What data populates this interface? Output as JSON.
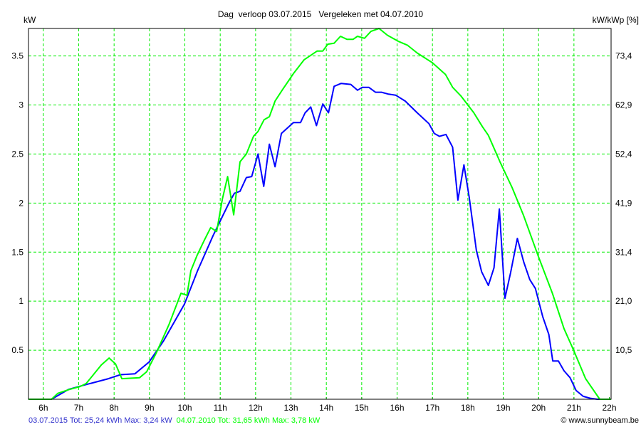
{
  "chart_data": {
    "type": "line",
    "title": "Dag  verloop 03.07.2015   Vergeleken met 04.07.2010",
    "ylabel": "kW",
    "ylabel_right": "kW/kWp [%]",
    "xlim": [
      5.58,
      22.05
    ],
    "ylim": [
      0,
      3.78
    ],
    "grid": true,
    "x_ticks": [
      6,
      7,
      8,
      9,
      10,
      11,
      12,
      13,
      14,
      15,
      16,
      17,
      18,
      19,
      20,
      21,
      22
    ],
    "x_tick_labels": [
      "6h",
      "7h",
      "8h",
      "9h",
      "10h",
      "11h",
      "12h",
      "13h",
      "14h",
      "15h",
      "16h",
      "17h",
      "18h",
      "19h",
      "20h",
      "21h",
      "22h"
    ],
    "y_ticks": [
      0.5,
      1,
      1.5,
      2,
      2.5,
      3,
      3.5
    ],
    "y_tick_labels": [
      "0.5",
      "1",
      "1.5",
      "2",
      "2.5",
      "3",
      "3.5"
    ],
    "y_right_tick_labels": [
      "10,5",
      "21,0",
      "31,4",
      "41,9",
      "52,4",
      "62,9",
      "73,4"
    ],
    "series": [
      {
        "name": "03.07.2015",
        "color": "#0000ff",
        "x": [
          5.58,
          6.23,
          6.71,
          7.11,
          7.84,
          8.18,
          8.59,
          8.99,
          9.39,
          9.99,
          10.36,
          10.8,
          11.26,
          11.4,
          11.56,
          11.74,
          11.89,
          12.07,
          12.23,
          12.39,
          12.55,
          12.73,
          13.07,
          13.27,
          13.4,
          13.56,
          13.72,
          13.9,
          14.06,
          14.22,
          14.42,
          14.69,
          14.88,
          15.02,
          15.2,
          15.39,
          15.56,
          15.76,
          15.96,
          16.23,
          16.57,
          16.9,
          17.05,
          17.2,
          17.38,
          17.57,
          17.72,
          17.89,
          18.04,
          18.24,
          18.39,
          18.58,
          18.74,
          18.89,
          19.05,
          19.21,
          19.4,
          19.58,
          19.75,
          19.91,
          20.12,
          20.29,
          20.4,
          20.56,
          20.72,
          20.89,
          21.06,
          21.26,
          21.46,
          21.66,
          22.05
        ],
        "y": [
          0,
          0,
          0.1,
          0.14,
          0.21,
          0.25,
          0.26,
          0.38,
          0.59,
          0.97,
          1.31,
          1.67,
          2.01,
          2.1,
          2.12,
          2.26,
          2.27,
          2.5,
          2.17,
          2.6,
          2.37,
          2.71,
          2.82,
          2.82,
          2.92,
          2.98,
          2.79,
          3.01,
          2.92,
          3.19,
          3.22,
          3.21,
          3.15,
          3.18,
          3.18,
          3.13,
          3.13,
          3.11,
          3.1,
          3.04,
          2.92,
          2.81,
          2.71,
          2.68,
          2.7,
          2.57,
          2.03,
          2.39,
          2.06,
          1.52,
          1.3,
          1.16,
          1.34,
          1.94,
          1.03,
          1.29,
          1.64,
          1.4,
          1.22,
          1.13,
          0.84,
          0.66,
          0.39,
          0.39,
          0.29,
          0.22,
          0.09,
          0.03,
          0.01,
          0,
          0
        ]
      },
      {
        "name": "04.07.2010",
        "color": "#00ff00",
        "x": [
          5.58,
          6.23,
          6.41,
          6.74,
          7.04,
          7.21,
          7.64,
          7.86,
          8.04,
          8.22,
          8.72,
          8.92,
          9.19,
          9.55,
          9.89,
          10.06,
          10.17,
          10.35,
          10.55,
          10.73,
          10.9,
          11.06,
          11.21,
          11.38,
          11.56,
          11.74,
          11.94,
          12.07,
          12.24,
          12.39,
          12.55,
          12.75,
          13.07,
          13.37,
          13.74,
          13.9,
          14.04,
          14.22,
          14.4,
          14.58,
          14.76,
          14.88,
          15.08,
          15.26,
          15.49,
          15.73,
          16.03,
          16.29,
          16.57,
          17.0,
          17.37,
          17.57,
          17.81,
          18.17,
          18.41,
          18.58,
          18.91,
          19.25,
          19.58,
          19.99,
          20.39,
          20.72,
          20.99,
          21.33,
          21.73,
          22.05
        ],
        "y": [
          0,
          0,
          0.06,
          0.1,
          0.13,
          0.16,
          0.35,
          0.42,
          0.36,
          0.21,
          0.22,
          0.28,
          0.47,
          0.76,
          1.08,
          1.06,
          1.31,
          1.47,
          1.62,
          1.75,
          1.71,
          2.04,
          2.27,
          1.88,
          2.42,
          2.5,
          2.68,
          2.73,
          2.85,
          2.88,
          3.04,
          3.15,
          3.32,
          3.46,
          3.55,
          3.55,
          3.62,
          3.63,
          3.7,
          3.67,
          3.67,
          3.7,
          3.68,
          3.75,
          3.78,
          3.71,
          3.65,
          3.61,
          3.53,
          3.43,
          3.31,
          3.18,
          3.09,
          2.92,
          2.78,
          2.69,
          2.42,
          2.16,
          1.87,
          1.46,
          1.08,
          0.72,
          0.5,
          0.21,
          0,
          0
        ]
      }
    ]
  },
  "footer": {
    "series1_summary": "03.07.2015 Tot: 25,24 kWh Max: 3,24 kW",
    "series2_summary": "04.07.2010 Tot: 31,65 kWh Max: 3,78 kW",
    "series1_color": "#3333cc",
    "series2_color": "#00ff00",
    "copyright": "© www.sunnybeam.be"
  }
}
